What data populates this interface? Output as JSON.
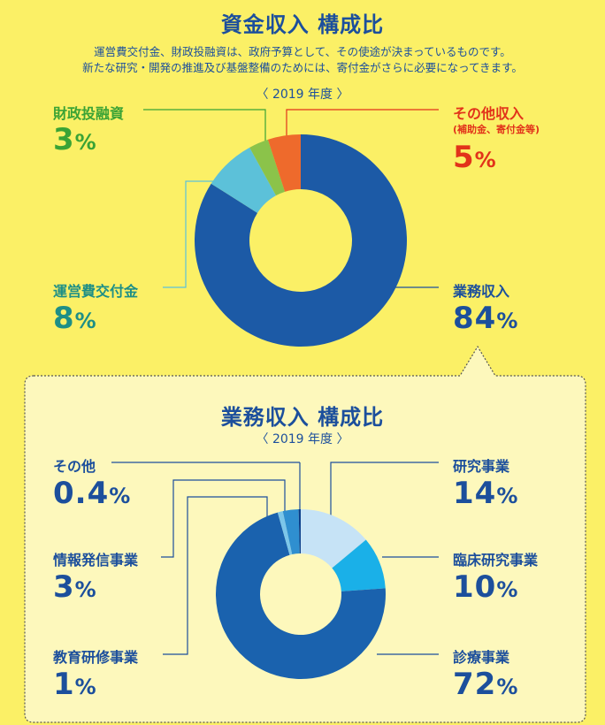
{
  "top": {
    "title": "資金収入 構成比",
    "description_line1": "運営費交付金、財政投融資は、政府予算として、その使途が決まっているものです。",
    "description_line2": "新たな研究・開発の推進及び基盤整備のためには、寄付金がさらに必要になってきます。",
    "year": "〈 2019 年度 〉",
    "labels": {
      "zaisei": "財政投融資",
      "zaisei_pct": "3",
      "sonota": "その他収入",
      "sonota_sub": "(補助金、寄付金等)",
      "sonota_pct": "5",
      "unei": "運営費交付金",
      "unei_pct": "8",
      "gyomu": "業務収入",
      "gyomu_pct": "84"
    }
  },
  "bottom": {
    "title": "業務収入 構成比",
    "year": "〈 2019 年度 〉",
    "labels": {
      "sonota": "その他",
      "sonota_pct": "0.4",
      "joho": "情報発信事業",
      "joho_pct": "3",
      "kyoiku": "教育研修事業",
      "kyoiku_pct": "1",
      "kenkyu": "研究事業",
      "kenkyu_pct": "14",
      "rinsho": "臨床研究事業",
      "rinsho_pct": "10",
      "shinryo": "診療事業",
      "shinryo_pct": "72"
    }
  },
  "unit": "%",
  "colors": {
    "background": "#fbf066",
    "panel": "#fdf8bc",
    "title": "#1c4f9c",
    "green_label": "#3aa335",
    "red_label": "#e2331a",
    "teal_label": "#1e8f86"
  },
  "chart_data": [
    {
      "type": "pie",
      "title": "資金収入 構成比",
      "subtitle": "〈 2019 年度 〉",
      "slices": [
        {
          "name": "業務収入",
          "value": 84,
          "color": "#1c5aa6"
        },
        {
          "name": "運営費交付金",
          "value": 8,
          "color": "#5cc1d9"
        },
        {
          "name": "財政投融資",
          "value": 3,
          "color": "#8bc34a"
        },
        {
          "name": "その他収入",
          "value": 5,
          "color": "#ee6a2c"
        }
      ]
    },
    {
      "type": "pie",
      "title": "業務収入 構成比",
      "subtitle": "〈 2019 年度 〉",
      "slices": [
        {
          "name": "研究事業",
          "value": 14,
          "color": "#c6e3f6"
        },
        {
          "name": "臨床研究事業",
          "value": 10,
          "color": "#1ab0e8"
        },
        {
          "name": "診療事業",
          "value": 72,
          "color": "#1a62ae"
        },
        {
          "name": "教育研修事業",
          "value": 1,
          "color": "#7cc6ea"
        },
        {
          "name": "情報発信事業",
          "value": 3,
          "color": "#2f8fd0"
        },
        {
          "name": "その他",
          "value": 0.4,
          "color": "#0c3f8a"
        }
      ]
    }
  ]
}
